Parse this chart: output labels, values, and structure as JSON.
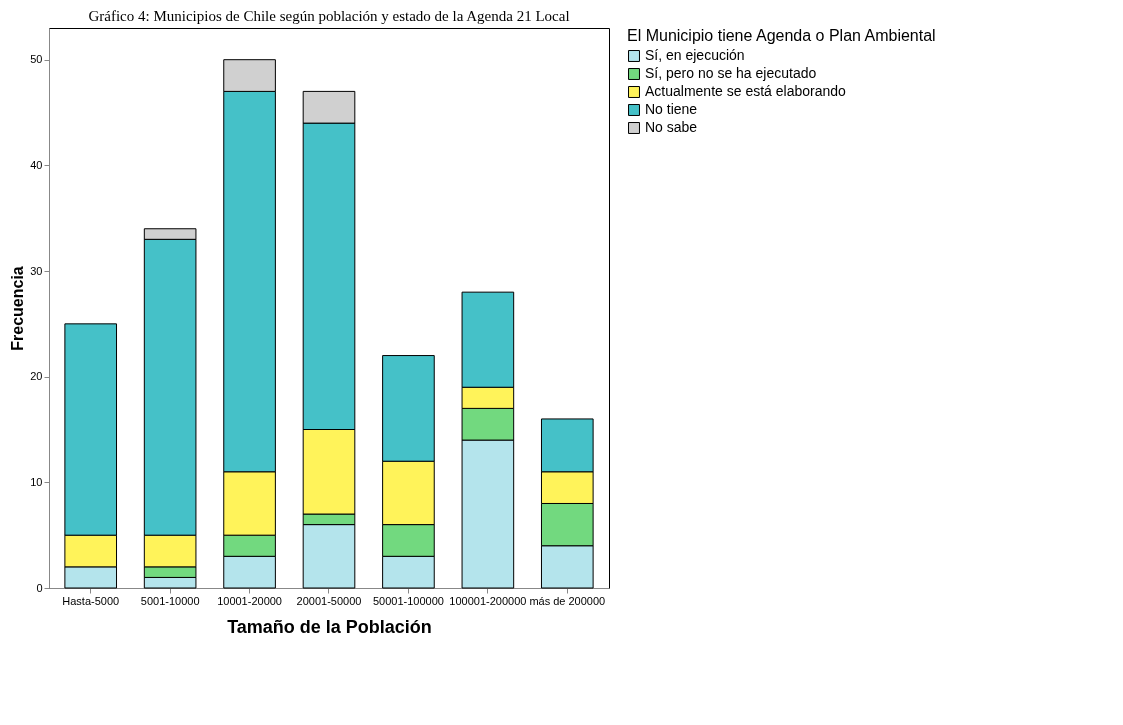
{
  "chart_data": {
    "type": "bar",
    "title": "Gráfico 4: Municipios de Chile según población y estado de la Agenda 21 Local",
    "xlabel": "Tamaño de la Población",
    "ylabel": "Frecuencia",
    "legend_title": "El Municipio tiene Agenda o Plan Ambiental",
    "categories": [
      "Hasta-5000",
      "5001-10000",
      "10001-20000",
      "20001-50000",
      "50001-100000",
      "100001-200000",
      "más de 200000"
    ],
    "stacked": true,
    "series": [
      {
        "name": "Sí, en ejecución",
        "color": "#b4e4ec",
        "values": [
          2,
          1,
          3,
          6,
          3,
          14,
          4
        ]
      },
      {
        "name": "Sí, pero no se ha ejecutado",
        "color": "#72d97f",
        "values": [
          0,
          1,
          2,
          1,
          3,
          3,
          4
        ]
      },
      {
        "name": "Actualmente se está elaborando",
        "color": "#fff35a",
        "values": [
          3,
          3,
          6,
          8,
          6,
          2,
          3
        ]
      },
      {
        "name": "No tiene",
        "color": "#45c1c8",
        "values": [
          20,
          28,
          36,
          29,
          10,
          9,
          5
        ]
      },
      {
        "name": "No sabe",
        "color": "#d0d0d0",
        "values": [
          0,
          1,
          3,
          3,
          0,
          0,
          0
        ]
      }
    ],
    "ylim": [
      0,
      53
    ],
    "yticks": [
      0,
      10,
      20,
      30,
      40,
      50
    ],
    "grid": false,
    "legend": "top right"
  }
}
